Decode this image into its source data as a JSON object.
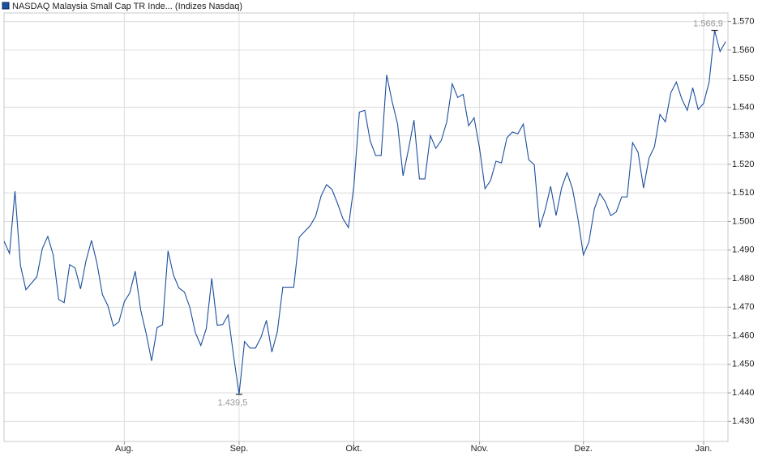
{
  "chart_data": {
    "type": "line",
    "categories": [
      null,
      null,
      null,
      null,
      null,
      null,
      null,
      null,
      null,
      null,
      null,
      null,
      null,
      null,
      null,
      null,
      null,
      null,
      null,
      null,
      null,
      null,
      "Aug.",
      null,
      null,
      null,
      null,
      null,
      null,
      null,
      null,
      null,
      null,
      null,
      null,
      null,
      null,
      null,
      null,
      null,
      null,
      null,
      null,
      "Sep.",
      null,
      null,
      null,
      null,
      null,
      null,
      null,
      null,
      null,
      null,
      null,
      null,
      null,
      null,
      null,
      null,
      null,
      null,
      null,
      null,
      "Okt.",
      null,
      null,
      null,
      null,
      null,
      null,
      null,
      null,
      null,
      null,
      null,
      null,
      null,
      null,
      null,
      null,
      null,
      null,
      null,
      null,
      null,
      null,
      "Nov.",
      null,
      null,
      null,
      null,
      null,
      null,
      null,
      null,
      null,
      null,
      null,
      null,
      null,
      null,
      null,
      null,
      null,
      null,
      "Dez.",
      null,
      null,
      null,
      null,
      null,
      null,
      null,
      null,
      null,
      null,
      null,
      null,
      null,
      null,
      null,
      null,
      null,
      null,
      null,
      null,
      null,
      "Jan.",
      null,
      null,
      null,
      null
    ],
    "series": [
      {
        "name": "NASDAQ Malaysia Small Cap TR Inde... (Indizes Nasdaq)",
        "color": "#1b4f9c",
        "values": [
          1493.1,
          1488.8,
          1510.6,
          1484.6,
          1476.1,
          1478.4,
          1480.6,
          1490.5,
          1494.8,
          1488.3,
          1472.7,
          1471.6,
          1484.9,
          1483.7,
          1476.4,
          1486.3,
          1493.4,
          1485.4,
          1474.4,
          1470.5,
          1463.4,
          1464.8,
          1471.9,
          1475.0,
          1482.6,
          1469.0,
          1460.8,
          1451.2,
          1462.8,
          1463.9,
          1489.7,
          1481.2,
          1476.7,
          1475.3,
          1469.9,
          1461.1,
          1456.6,
          1462.5,
          1480.1,
          1463.7,
          1463.9,
          1467.3,
          1452.9,
          1439.5,
          1458.0,
          1455.7,
          1455.7,
          1459.4,
          1465.4,
          1454.3,
          1461.4,
          1477.0,
          1477.0,
          1477.0,
          1494.5,
          1496.5,
          1498.5,
          1501.8,
          1508.9,
          1512.9,
          1511.2,
          1506.4,
          1501.0,
          1497.9,
          1512.3,
          1538.3,
          1538.9,
          1528.1,
          1523.1,
          1523.1,
          1551.3,
          1542.0,
          1534.1,
          1516.0,
          1525.3,
          1535.5,
          1514.9,
          1514.9,
          1530.1,
          1525.6,
          1528.4,
          1534.9,
          1548.2,
          1543.4,
          1544.5,
          1533.5,
          1536.3,
          1525.6,
          1511.5,
          1514.3,
          1521.1,
          1520.5,
          1529.3,
          1531.3,
          1530.7,
          1534.1,
          1521.6,
          1519.9,
          1497.9,
          1504.1,
          1512.3,
          1502.1,
          1511.7,
          1517.1,
          1511.5,
          1501.0,
          1488.3,
          1492.8,
          1504.4,
          1509.8,
          1506.9,
          1502.1,
          1503.3,
          1508.6,
          1508.6,
          1527.6,
          1524.2,
          1511.7,
          1522.2,
          1526.2,
          1537.5,
          1534.9,
          1545.1,
          1548.8,
          1542.9,
          1538.9,
          1546.8,
          1539.2,
          1541.4,
          1548.8,
          1566.9,
          1559.5,
          1562.9
        ],
        "value_labels": [
          null,
          null,
          null,
          null,
          null,
          null,
          null,
          null,
          null,
          null,
          null,
          null,
          null,
          null,
          null,
          null,
          null,
          null,
          null,
          null,
          null,
          null,
          null,
          null,
          null,
          null,
          null,
          null,
          null,
          null,
          null,
          null,
          null,
          null,
          null,
          null,
          null,
          null,
          null,
          null,
          null,
          null,
          null,
          "1.439,5",
          null,
          null,
          null,
          null,
          null,
          null,
          null,
          null,
          null,
          null,
          null,
          null,
          null,
          null,
          null,
          null,
          null,
          null,
          null,
          null,
          null,
          null,
          null,
          null,
          null,
          null,
          null,
          null,
          null,
          null,
          null,
          null,
          null,
          null,
          null,
          null,
          null,
          null,
          null,
          null,
          null,
          null,
          null,
          null,
          null,
          null,
          null,
          null,
          null,
          null,
          null,
          null,
          null,
          null,
          null,
          null,
          null,
          null,
          null,
          null,
          null,
          null,
          null,
          null,
          null,
          null,
          null,
          null,
          null,
          null,
          null,
          null,
          null,
          null,
          null,
          null,
          null,
          null,
          null,
          null,
          null,
          null,
          null,
          null,
          null,
          null,
          "1.566,9",
          null,
          null
        ]
      }
    ],
    "ylim": [
      1423,
      1573
    ],
    "yticks": [
      {
        "value": 1430,
        "label": "1.430"
      },
      {
        "value": 1440,
        "label": "1.440"
      },
      {
        "value": 1450,
        "label": "1.450"
      },
      {
        "value": 1460,
        "label": "1.460"
      },
      {
        "value": 1470,
        "label": "1.470"
      },
      {
        "value": 1480,
        "label": "1.480"
      },
      {
        "value": 1490,
        "label": "1.490"
      },
      {
        "value": 1500,
        "label": "1.500"
      },
      {
        "value": 1510,
        "label": "1.510"
      },
      {
        "value": 1520,
        "label": "1.520"
      },
      {
        "value": 1530,
        "label": "1.530"
      },
      {
        "value": 1540,
        "label": "1.540"
      },
      {
        "value": 1550,
        "label": "1.550"
      },
      {
        "value": 1560,
        "label": "1.560"
      },
      {
        "value": 1570,
        "label": "1.570"
      }
    ],
    "grid": true
  }
}
